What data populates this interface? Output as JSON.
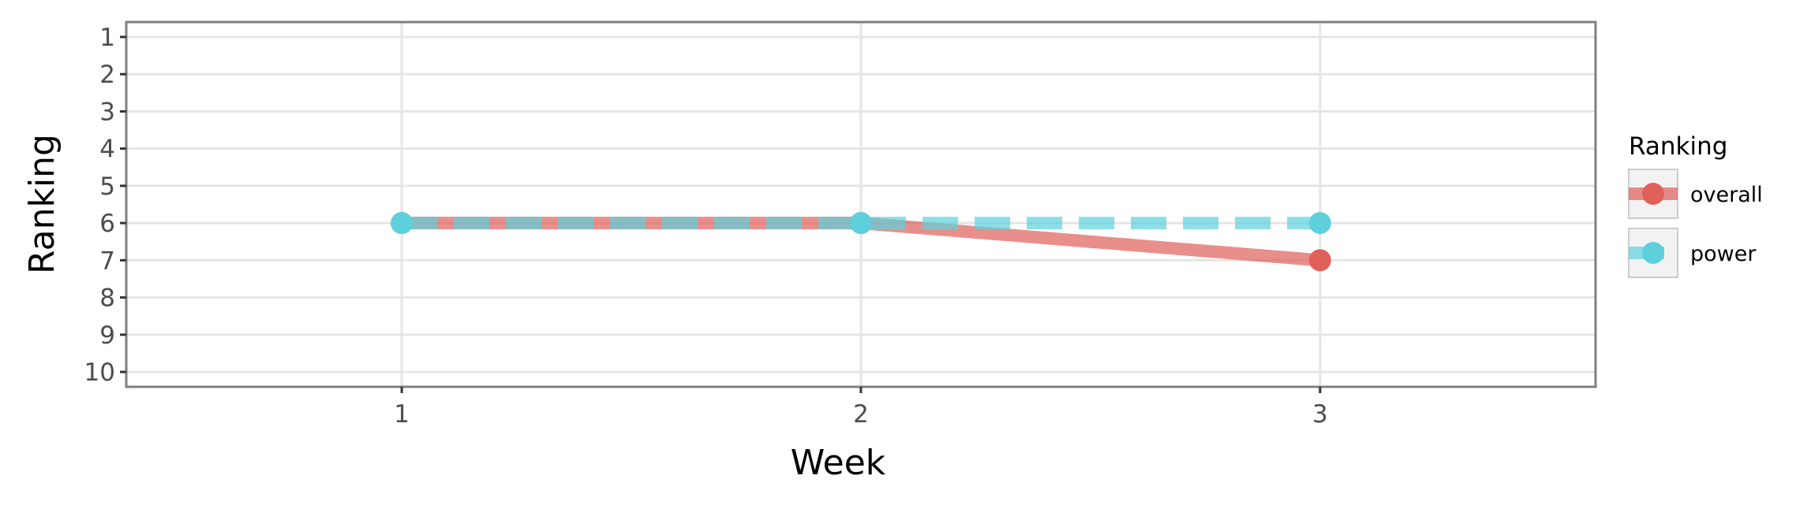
{
  "chart_data": {
    "type": "line",
    "title": "",
    "xlabel": "Week",
    "ylabel": "Ranking",
    "x": [
      1,
      2,
      3
    ],
    "xlim": [
      0.4,
      3.6
    ],
    "ylim": [
      10.4,
      0.6
    ],
    "y_reversed": true,
    "x_ticks": [
      "1",
      "2",
      "3"
    ],
    "y_ticks": [
      "1",
      "2",
      "3",
      "4",
      "5",
      "6",
      "7",
      "8",
      "9",
      "10"
    ],
    "grid": true,
    "legend": {
      "title": "Ranking",
      "position": "right"
    },
    "series": [
      {
        "name": "overall",
        "values": [
          6,
          6,
          7
        ],
        "color": "#e0605a",
        "line_style": "solid"
      },
      {
        "name": "power",
        "values": [
          6,
          6,
          6
        ],
        "color": "#5dd0dc",
        "line_style": "dashed"
      }
    ]
  }
}
